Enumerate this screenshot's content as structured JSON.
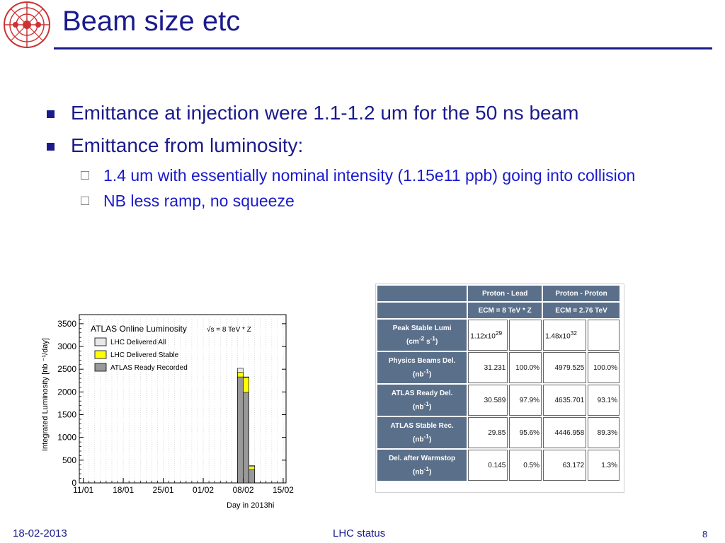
{
  "slide": {
    "title": "Beam size etc",
    "bullets": [
      {
        "text": "Emittance at injection were 1.1-1.2 um for the 50 ns beam"
      },
      {
        "text": "Emittance from luminosity:"
      }
    ],
    "sub_bullets": [
      {
        "text": "1.4 um with essentially nominal intensity (1.15e11 ppb) going into collision"
      },
      {
        "text": "NB less ramp, no squeeze"
      }
    ],
    "colors": {
      "title": "#1b1b8c",
      "sub_bullet": "#1a1acc",
      "table_header": "#5a6f8a"
    }
  },
  "chart_data": {
    "type": "bar",
    "title": "ATLAS Online Luminosity",
    "subtitle": "√s = 8 TeV * Z",
    "xlabel": "Day in 2013hi",
    "ylabel": "Integrated Luminosity [nb ⁻¹/day]",
    "x_ticks": [
      "11/01",
      "18/01",
      "25/01",
      "01/02",
      "08/02",
      "15/02"
    ],
    "y_ticks": [
      "0",
      "500",
      "1000",
      "1500",
      "2000",
      "2500",
      "3000",
      "3500"
    ],
    "ylim": [
      0,
      3700
    ],
    "legend": [
      "LHC Delivered All",
      "LHC Delivered Stable",
      "ATLAS Ready Recorded"
    ],
    "series": [
      {
        "name": "LHC Delivered All",
        "color": "#e8e8e8",
        "values": [
          2520,
          2330,
          380
        ]
      },
      {
        "name": "LHC Delivered Stable",
        "color": "#ffff00",
        "values": [
          2430,
          2320,
          360
        ]
      },
      {
        "name": "ATLAS Ready Recorded",
        "color": "#999999",
        "values": [
          2330,
          1990,
          290
        ]
      }
    ],
    "bar_days": [
      38.5,
      39.5,
      40.5
    ]
  },
  "table": {
    "headers": [
      "Proton - Lead",
      "Proton - Proton"
    ],
    "sub_headers": [
      "ECM = 8 TeV * Z",
      "ECM = 2.76 TeV"
    ],
    "rows": [
      {
        "label": "Peak Stable Lumi",
        "unit_base": "(cm",
        "unit_exp1": "-2",
        "unit_mid": " s",
        "unit_exp2": "-1",
        "unit_end": ")",
        "pl_base": "1.12x10",
        "pl_exp": "29",
        "pl_pct": "",
        "pp_base": "1.48x10",
        "pp_exp": "32",
        "pp_pct": ""
      },
      {
        "label": "Physics Beams Del.",
        "unit_base": "(nb",
        "unit_exp": "-1",
        "unit_end": ")",
        "pl": "31.231",
        "pl_pct": "100.0%",
        "pp": "4979.525",
        "pp_pct": "100.0%"
      },
      {
        "label": "ATLAS Ready Del.",
        "unit_base": "(nb",
        "unit_exp": "-1",
        "unit_end": ")",
        "pl": "30.589",
        "pl_pct": "97.9%",
        "pp": "4635.701",
        "pp_pct": "93.1%"
      },
      {
        "label": "ATLAS Stable Rec.",
        "unit_base": "(nb",
        "unit_exp": "-1",
        "unit_end": ")",
        "pl": "29.85",
        "pl_pct": "95.6%",
        "pp": "4446.958",
        "pp_pct": "89.3%"
      },
      {
        "label": "Del. after Warmstop",
        "unit_base": "(nb",
        "unit_exp": "-1",
        "unit_end": ")",
        "pl": "0.145",
        "pl_pct": "0.5%",
        "pp": "63.172",
        "pp_pct": "1.3%"
      }
    ]
  },
  "footer": {
    "date": "18-02-2013",
    "center": "LHC status",
    "page": "8"
  }
}
